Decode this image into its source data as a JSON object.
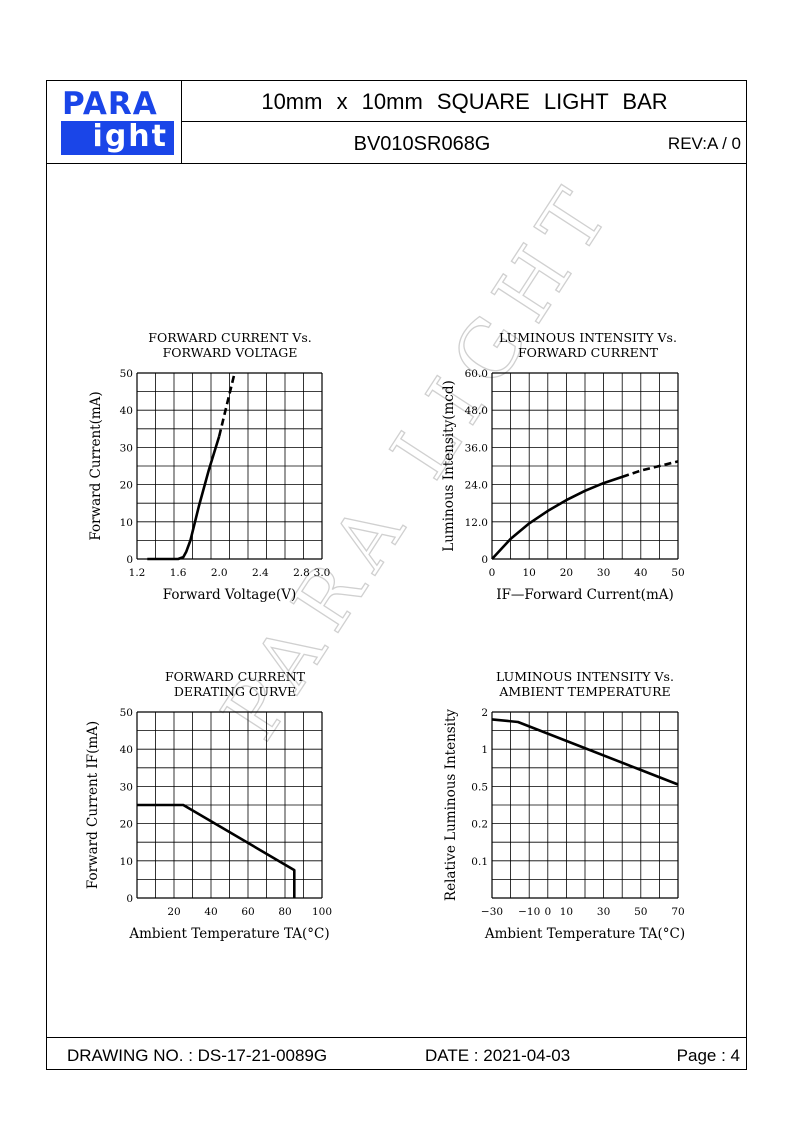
{
  "header": {
    "logo_top": "PARA",
    "logo_bottom": "ight",
    "title": "10mm x 10mm  SQUARE  LIGHT  BAR",
    "part_no": "BV010SR068G",
    "rev": "REV:A / 0"
  },
  "watermark": "PARA LIGHT",
  "footer": {
    "drawing_no": "DRAWING NO. : DS-17-21-0089G",
    "date": "DATE : 2021-04-03",
    "page": "Page : 4"
  },
  "chart_data": [
    {
      "type": "line",
      "title": [
        "FORWARD  CURRENT  Vs.",
        "FORWARD  VOLTAGE"
      ],
      "xlabel": "Forward  Voltage(V)",
      "ylabel": "Forward  Current(mA)",
      "xlim": [
        1.2,
        3.0
      ],
      "ylim": [
        0,
        50
      ],
      "x_ticks": [
        "1.2",
        "1.6",
        "2.0",
        "2.4",
        "2.8",
        "3.0"
      ],
      "y_ticks": [
        "0",
        "10",
        "20",
        "30",
        "40",
        "50"
      ],
      "grid": true,
      "series": [
        {
          "style": "solid",
          "x": [
            1.3,
            1.6,
            1.65,
            1.68,
            1.72,
            1.8,
            1.9,
            2.0
          ],
          "y": [
            0,
            0,
            0.5,
            2,
            5,
            14,
            24,
            33
          ]
        },
        {
          "style": "dashed",
          "x": [
            2.0,
            2.07,
            2.15
          ],
          "y": [
            33,
            41,
            50
          ]
        }
      ]
    },
    {
      "type": "line",
      "title": [
        "LUMINOUS  INTENSITY  Vs.",
        "FORWARD  CURRENT"
      ],
      "xlabel": "IF—Forward  Current(mA)",
      "ylabel": "Luminous  Intensity(mcd)",
      "xlim": [
        0,
        50
      ],
      "ylim": [
        0,
        60
      ],
      "x_ticks": [
        "0",
        "10",
        "20",
        "30",
        "40",
        "50"
      ],
      "y_ticks": [
        "0",
        "12.0",
        "24.0",
        "36.0",
        "48.0",
        "60.0"
      ],
      "grid": true,
      "series": [
        {
          "style": "solid",
          "x": [
            0,
            5,
            10,
            15,
            20,
            25,
            30,
            35
          ],
          "y": [
            0,
            6.5,
            11.5,
            15.5,
            19,
            22,
            24.5,
            26.5
          ]
        },
        {
          "style": "dashed",
          "x": [
            35,
            40,
            45,
            50
          ],
          "y": [
            26.5,
            28.5,
            30,
            31.5
          ]
        }
      ]
    },
    {
      "type": "line",
      "title": [
        "FORWARD  CURRENT",
        "DERATING  CURVE"
      ],
      "xlabel": "Ambient  Temperature  TA(°C)",
      "ylabel": "Forward  Current  IF(mA)",
      "xlim": [
        0,
        100
      ],
      "ylim": [
        0,
        50
      ],
      "x_ticks": [
        "20",
        "40",
        "60",
        "80",
        "100"
      ],
      "y_ticks": [
        "0",
        "10",
        "20",
        "30",
        "40",
        "50"
      ],
      "grid": true,
      "series": [
        {
          "style": "solid",
          "x": [
            0,
            25,
            85,
            85
          ],
          "y": [
            25,
            25,
            7.5,
            0
          ]
        }
      ]
    },
    {
      "type": "line",
      "title": [
        "LUMINOUS  INTENSITY  Vs.",
        "AMBIENT  TEMPERATURE"
      ],
      "xlabel": "Ambient  Temperature  TA(°C)",
      "ylabel": "Relative  Luminous  Intensity",
      "xlim": [
        -30,
        70
      ],
      "ylim": [
        0,
        5
      ],
      "x_ticks": [
        "−30",
        "−10",
        "0",
        "10",
        "30",
        "50",
        "70"
      ],
      "x_tick_values": [
        -30,
        -10,
        0,
        10,
        30,
        50,
        70
      ],
      "y_ticks": [
        "0.1",
        "0.2",
        "0.5",
        "1",
        "2"
      ],
      "y_tick_positions": [
        1,
        2,
        3,
        4,
        5
      ],
      "grid": true,
      "series": [
        {
          "style": "solid",
          "x": [
            -30,
            -16,
            70
          ],
          "y": [
            4.8,
            4.73,
            3.05
          ]
        }
      ]
    }
  ]
}
